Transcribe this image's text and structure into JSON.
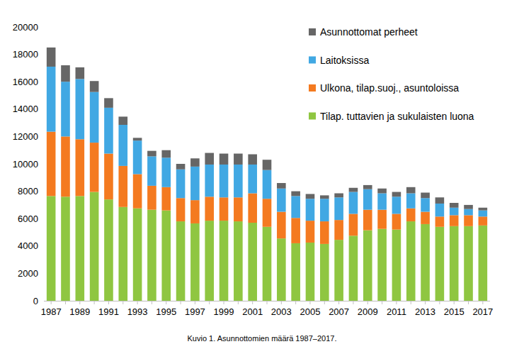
{
  "chart_data": {
    "type": "bar",
    "stacked": true,
    "title": "Kuvio 1. Asunnottomien määrä 1987–2017.",
    "categories": [
      "1987",
      null,
      "1989",
      null,
      "1991",
      null,
      "1993",
      null,
      "1995",
      null,
      "1997",
      null,
      "1999",
      null,
      "2001",
      null,
      "2003",
      null,
      "2005",
      null,
      "2007",
      null,
      "2009",
      null,
      "2011",
      null,
      "2013",
      null,
      "2015",
      null,
      "2017"
    ],
    "series": [
      {
        "name": "Tilap. tuttavien ja sukulaisten luona",
        "color": "#8fc641",
        "values": [
          7650,
          7600,
          7650,
          7950,
          7400,
          6850,
          6750,
          6650,
          6600,
          5800,
          5650,
          5850,
          5850,
          5800,
          5700,
          5400,
          4550,
          4200,
          4250,
          4150,
          4450,
          4750,
          5150,
          5250,
          5200,
          5800,
          5600,
          5400,
          5450,
          5450,
          5500
        ]
      },
      {
        "name": "Ulkona, tilap.suoj., asuntoloissa",
        "color": "#f47a20",
        "values": [
          4700,
          4400,
          4150,
          3600,
          3350,
          3000,
          2500,
          1750,
          1700,
          1700,
          1700,
          1750,
          1700,
          1750,
          2150,
          2050,
          1950,
          1850,
          1600,
          1650,
          1450,
          1600,
          1500,
          1400,
          1150,
          950,
          900,
          750,
          800,
          800,
          650
        ]
      },
      {
        "name": "Laitoksissa",
        "color": "#41a8e3",
        "values": [
          4750,
          4000,
          4400,
          3700,
          3350,
          3000,
          2450,
          2150,
          2150,
          2100,
          2450,
          2350,
          2400,
          2400,
          2100,
          2100,
          1700,
          1600,
          1600,
          1650,
          1650,
          1600,
          1500,
          1200,
          1250,
          1100,
          1000,
          950,
          550,
          450,
          450
        ]
      },
      {
        "name": "Asunnottomat perheet",
        "color": "#666666",
        "values": [
          1400,
          1200,
          850,
          800,
          700,
          600,
          200,
          400,
          550,
          400,
          600,
          850,
          800,
          800,
          750,
          750,
          400,
          350,
          350,
          250,
          300,
          300,
          300,
          350,
          350,
          450,
          400,
          450,
          350,
          300,
          200
        ]
      }
    ],
    "ylim": [
      0,
      20000
    ],
    "yticks": [
      0,
      2000,
      4000,
      6000,
      8000,
      10000,
      12000,
      14000,
      16000,
      18000,
      20000
    ],
    "grid": false,
    "legend": "upper right"
  }
}
